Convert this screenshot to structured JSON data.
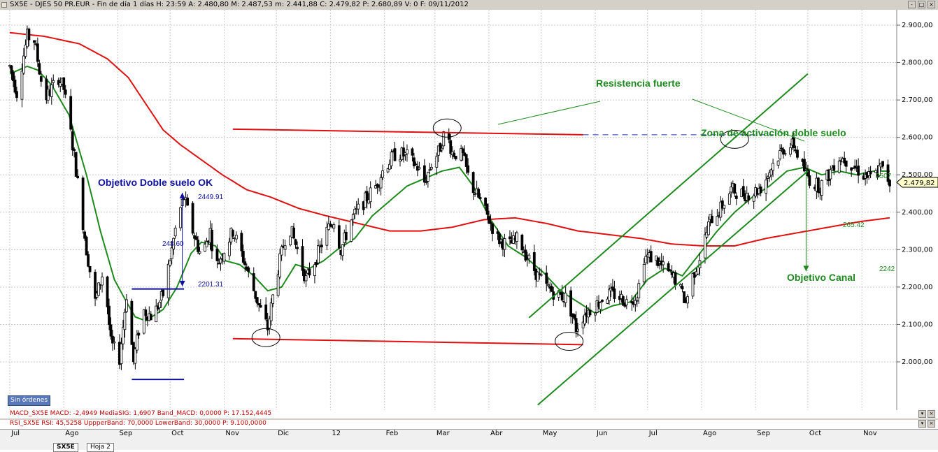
{
  "header": {
    "info": "SX5E - DJES 50 PR.EUR - Fin de día 1 días  H: 23:59  A: 2.480,80  M: 2.487,53  m: 2.441,88  C: 2.479,82  P: 2.680,89  V: 0  F: 09/11/2012"
  },
  "window_buttons": [
    "-",
    "□",
    "×"
  ],
  "orders_label": "Sin órdenes",
  "indicators": {
    "macd": "MACD_SX5E  MACD: -2,4949  MediaSIG: 1,6907  Band_MACD: 0,0000  P: 17.152,4445",
    "rsi": "RSI_SX5E  RSI: 45,5258  UppperBand: 70,0000  LowerBand: 30,0000  P: 9.100,0000"
  },
  "sheet_tabs": [
    "SX5E",
    "Hoja 2"
  ],
  "colors": {
    "candles": "#000000",
    "ma_short": "#1e8a1e",
    "ma_long": "#e01010",
    "annotation_blue": "#1010a0",
    "annotation_green": "#1e8a1e",
    "price_axis_bg": "#ffffcc"
  },
  "chart_data": {
    "type": "candlestick",
    "ylim": [
      1900,
      2950
    ],
    "y_ticks": [
      "2.000,00",
      "2.100,00",
      "2.200,00",
      "2.300,00",
      "2.400,00",
      "2.500,00",
      "2.600,00",
      "2.700,00",
      "2.800,00",
      "2.900,00"
    ],
    "y_tick_values": [
      2000,
      2100,
      2200,
      2300,
      2400,
      2500,
      2600,
      2700,
      2800,
      2900
    ],
    "x_ticks": [
      "Jul",
      "Ago",
      "Sep",
      "Oct",
      "Nov",
      "Dic",
      "12",
      "Feb",
      "Mar",
      "Abr",
      "May",
      "Jun",
      "Jul",
      "Ago",
      "Sep",
      "Oct",
      "Nov"
    ],
    "x_range_days": [
      0,
      505
    ],
    "x_tick_days": [
      0,
      31,
      62,
      92,
      123,
      153,
      184,
      215,
      244,
      275,
      305,
      336,
      366,
      397,
      428,
      458,
      489
    ],
    "current_price_label": "2.479,82",
    "current_price": 2479.82,
    "price_keyframes": [
      [
        0,
        2790
      ],
      [
        4,
        2720
      ],
      [
        10,
        2870
      ],
      [
        14,
        2860
      ],
      [
        20,
        2700
      ],
      [
        28,
        2760
      ],
      [
        31,
        2730
      ],
      [
        37,
        2550
      ],
      [
        44,
        2300
      ],
      [
        49,
        2160
      ],
      [
        54,
        2250
      ],
      [
        58,
        2050
      ],
      [
        63,
        2010
      ],
      [
        67,
        2180
      ],
      [
        71,
        2000
      ],
      [
        76,
        2140
      ],
      [
        82,
        2120
      ],
      [
        88,
        2180
      ],
      [
        93,
        2300
      ],
      [
        96,
        2380
      ],
      [
        100,
        2440
      ],
      [
        105,
        2350
      ],
      [
        110,
        2280
      ],
      [
        115,
        2350
      ],
      [
        118,
        2250
      ],
      [
        123,
        2300
      ],
      [
        128,
        2350
      ],
      [
        133,
        2290
      ],
      [
        138,
        2220
      ],
      [
        143,
        2150
      ],
      [
        148,
        2090
      ],
      [
        153,
        2230
      ],
      [
        160,
        2370
      ],
      [
        165,
        2300
      ],
      [
        170,
        2220
      ],
      [
        176,
        2280
      ],
      [
        182,
        2350
      ],
      [
        186,
        2380
      ],
      [
        190,
        2300
      ],
      [
        196,
        2380
      ],
      [
        202,
        2420
      ],
      [
        210,
        2470
      ],
      [
        215,
        2520
      ],
      [
        222,
        2560
      ],
      [
        228,
        2550
      ],
      [
        234,
        2520
      ],
      [
        238,
        2480
      ],
      [
        242,
        2530
      ],
      [
        246,
        2560
      ],
      [
        250,
        2620
      ],
      [
        254,
        2560
      ],
      [
        260,
        2550
      ],
      [
        264,
        2480
      ],
      [
        270,
        2430
      ],
      [
        275,
        2380
      ],
      [
        280,
        2330
      ],
      [
        286,
        2310
      ],
      [
        292,
        2330
      ],
      [
        297,
        2280
      ],
      [
        303,
        2230
      ],
      [
        308,
        2200
      ],
      [
        314,
        2180
      ],
      [
        320,
        2170
      ],
      [
        325,
        2090
      ],
      [
        330,
        2130
      ],
      [
        336,
        2150
      ],
      [
        342,
        2180
      ],
      [
        348,
        2180
      ],
      [
        354,
        2160
      ],
      [
        360,
        2180
      ],
      [
        364,
        2280
      ],
      [
        370,
        2280
      ],
      [
        375,
        2250
      ],
      [
        382,
        2220
      ],
      [
        388,
        2160
      ],
      [
        392,
        2230
      ],
      [
        396,
        2280
      ],
      [
        402,
        2380
      ],
      [
        408,
        2410
      ],
      [
        414,
        2460
      ],
      [
        420,
        2450
      ],
      [
        426,
        2450
      ],
      [
        432,
        2470
      ],
      [
        438,
        2530
      ],
      [
        444,
        2570
      ],
      [
        450,
        2580
      ],
      [
        455,
        2520
      ],
      [
        460,
        2480
      ],
      [
        465,
        2470
      ],
      [
        470,
        2500
      ],
      [
        475,
        2550
      ],
      [
        480,
        2540
      ],
      [
        485,
        2520
      ],
      [
        490,
        2500
      ],
      [
        495,
        2490
      ],
      [
        500,
        2520
      ],
      [
        505,
        2480
      ]
    ],
    "series": [
      {
        "keyframes": [
          [
            0,
            2770
          ],
          [
            10,
            2790
          ],
          [
            16,
            2780
          ],
          [
            24,
            2740
          ],
          [
            34,
            2660
          ],
          [
            44,
            2500
          ],
          [
            52,
            2350
          ],
          [
            60,
            2220
          ],
          [
            67,
            2160
          ],
          [
            72,
            2120
          ],
          [
            78,
            2110
          ],
          [
            88,
            2140
          ],
          [
            96,
            2200
          ],
          [
            104,
            2290
          ],
          [
            110,
            2320
          ],
          [
            118,
            2310
          ],
          [
            124,
            2270
          ],
          [
            132,
            2260
          ],
          [
            140,
            2230
          ],
          [
            148,
            2190
          ],
          [
            156,
            2200
          ],
          [
            164,
            2260
          ],
          [
            172,
            2250
          ],
          [
            180,
            2270
          ],
          [
            188,
            2300
          ],
          [
            198,
            2330
          ],
          [
            208,
            2390
          ],
          [
            218,
            2430
          ],
          [
            228,
            2470
          ],
          [
            238,
            2490
          ],
          [
            248,
            2510
          ],
          [
            258,
            2520
          ],
          [
            266,
            2470
          ],
          [
            276,
            2380
          ],
          [
            286,
            2310
          ],
          [
            296,
            2280
          ],
          [
            306,
            2240
          ],
          [
            316,
            2190
          ],
          [
            326,
            2160
          ],
          [
            336,
            2130
          ],
          [
            346,
            2150
          ],
          [
            356,
            2160
          ],
          [
            366,
            2220
          ],
          [
            376,
            2250
          ],
          [
            386,
            2230
          ],
          [
            396,
            2290
          ],
          [
            406,
            2350
          ],
          [
            416,
            2400
          ],
          [
            426,
            2440
          ],
          [
            436,
            2470
          ],
          [
            446,
            2510
          ],
          [
            456,
            2520
          ],
          [
            466,
            2500
          ],
          [
            476,
            2510
          ],
          [
            486,
            2500
          ],
          [
            496,
            2510
          ],
          [
            505,
            2510
          ]
        ]
      },
      {
        "keyframes": [
          [
            0,
            2880
          ],
          [
            20,
            2870
          ],
          [
            40,
            2850
          ],
          [
            56,
            2810
          ],
          [
            68,
            2760
          ],
          [
            78,
            2690
          ],
          [
            88,
            2620
          ],
          [
            98,
            2580
          ],
          [
            110,
            2540
          ],
          [
            122,
            2500
          ],
          [
            136,
            2460
          ],
          [
            150,
            2440
          ],
          [
            166,
            2410
          ],
          [
            182,
            2390
          ],
          [
            200,
            2370
          ],
          [
            218,
            2350
          ],
          [
            236,
            2350
          ],
          [
            254,
            2360
          ],
          [
            272,
            2380
          ],
          [
            290,
            2385
          ],
          [
            308,
            2370
          ],
          [
            326,
            2350
          ],
          [
            344,
            2340
          ],
          [
            362,
            2330
          ],
          [
            380,
            2315
          ],
          [
            398,
            2310
          ],
          [
            416,
            2310
          ],
          [
            434,
            2330
          ],
          [
            452,
            2345
          ],
          [
            470,
            2360
          ],
          [
            488,
            2375
          ],
          [
            505,
            2385
          ]
        ]
      }
    ],
    "annotations": {
      "double_bottom_target": "Objetivo Doble suelo OK",
      "target_level": "2449.91",
      "measured_move": "248.60",
      "breakout_level": "2201.31",
      "strong_resistance": "Resistencia fuerte",
      "activation_zone": "Zona de activación doble suelo",
      "channel_target_title": "Objetivo Canal",
      "channel_width": "265.42",
      "channel_target": "2242",
      "partial_level_label": "2507"
    },
    "drawn_lines": {
      "resistance": [
        [
          128,
          2622
        ],
        [
          329,
          2607
        ]
      ],
      "resistance_dashed": [
        [
          329,
          2607
        ],
        [
          438,
          2607
        ]
      ],
      "support": [
        [
          128,
          2062
        ],
        [
          329,
          2046
        ]
      ],
      "channel_upper": [
        [
          298,
          2118
        ],
        [
          458,
          2770
        ]
      ],
      "channel_lower": [
        [
          303,
          1885
        ],
        [
          458,
          2510
        ]
      ],
      "bottom_box_top": [
        [
          70,
          2195
        ],
        [
          100,
          2195
        ]
      ],
      "bottom_box_bottom": [
        [
          70,
          1953
        ],
        [
          100,
          1953
        ]
      ],
      "channel_target_arrow": [
        [
          457,
          2515
        ],
        [
          457,
          2242
        ]
      ],
      "target_arrow": [
        [
          99,
          2202
        ],
        [
          99,
          2452
        ]
      ]
    },
    "highlight_ellipses_days": [
      [
        147,
        2065
      ],
      [
        251,
        2625
      ],
      [
        321,
        2055
      ],
      [
        416,
        2595
      ]
    ]
  }
}
